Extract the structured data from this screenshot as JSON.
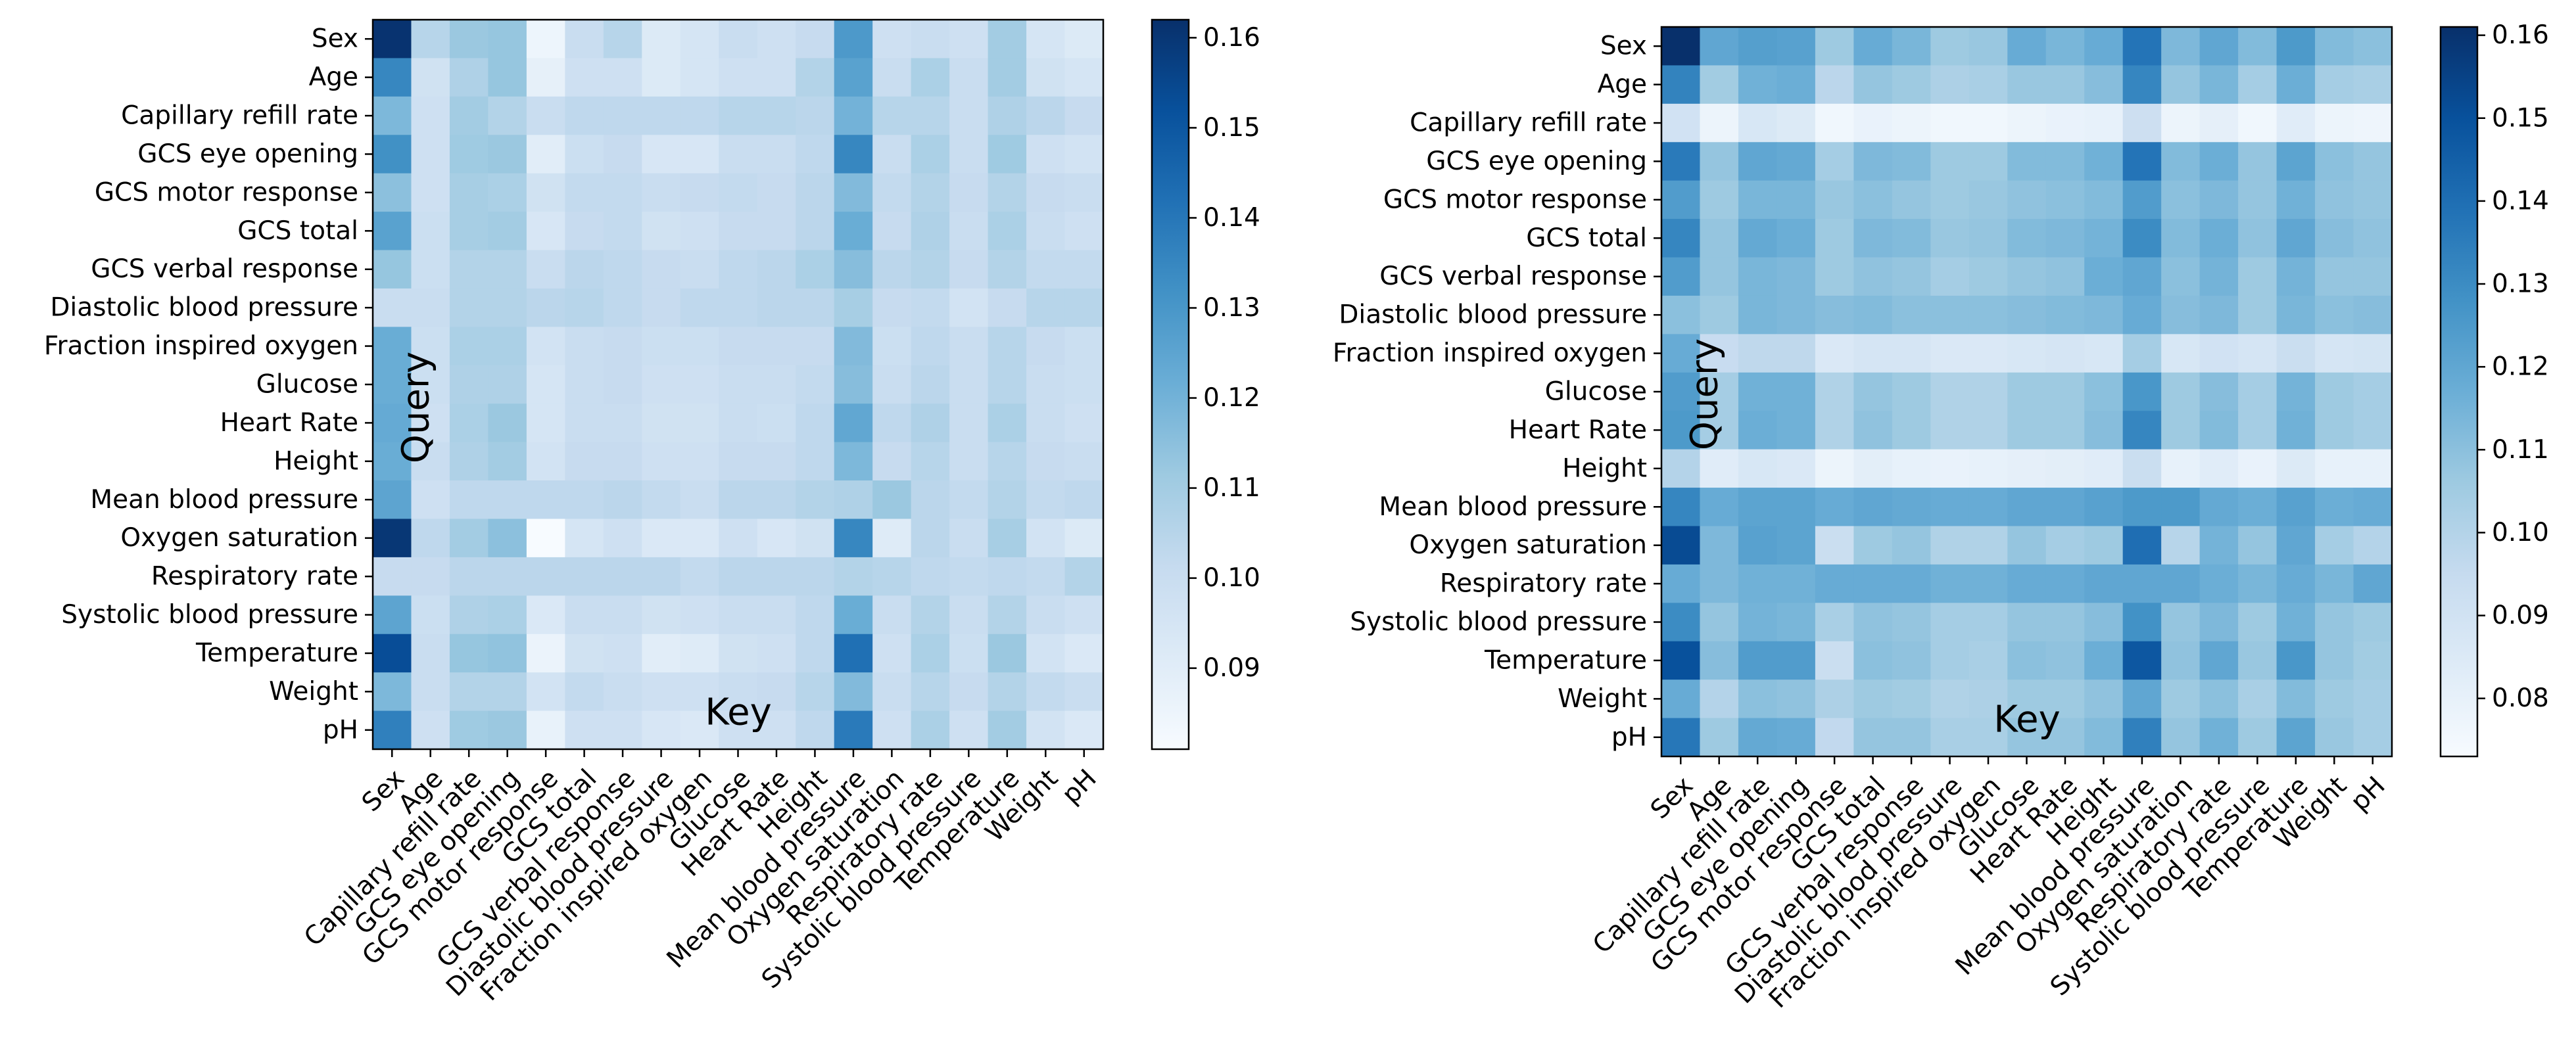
{
  "chart_data": [
    {
      "type": "heatmap",
      "title": "",
      "xlabel": "Key",
      "ylabel": "Query",
      "colormap": "Blues",
      "categories": [
        "Sex",
        "Age",
        "Capillary refill rate",
        "GCS eye opening",
        "GCS motor response",
        "GCS total",
        "GCS verbal response",
        "Diastolic blood pressure",
        "Fraction inspired oxygen",
        "Glucose",
        "Heart Rate",
        "Height",
        "Mean blood pressure",
        "Oxygen saturation",
        "Respiratory rate",
        "Systolic blood pressure",
        "Temperature",
        "Weight",
        "pH"
      ],
      "colorbar": {
        "vmin": 0.081,
        "vmax": 0.162,
        "ticks": [
          "0.09",
          "0.10",
          "0.11",
          "0.12",
          "0.13",
          "0.14",
          "0.15",
          "0.16"
        ]
      },
      "z": [
        [
          0.161,
          0.105,
          0.112,
          0.113,
          0.085,
          0.1,
          0.105,
          0.092,
          0.095,
          0.1,
          0.098,
          0.101,
          0.129,
          0.098,
          0.1,
          0.098,
          0.11,
          0.095,
          0.092
        ],
        [
          0.135,
          0.097,
          0.107,
          0.113,
          0.088,
          0.098,
          0.098,
          0.092,
          0.095,
          0.098,
          0.098,
          0.106,
          0.126,
          0.1,
          0.108,
          0.1,
          0.11,
          0.097,
          0.095
        ],
        [
          0.118,
          0.098,
          0.11,
          0.106,
          0.1,
          0.103,
          0.103,
          0.103,
          0.103,
          0.105,
          0.105,
          0.104,
          0.12,
          0.105,
          0.105,
          0.1,
          0.107,
          0.104,
          0.101
        ],
        [
          0.132,
          0.098,
          0.111,
          0.112,
          0.09,
          0.099,
          0.101,
          0.094,
          0.094,
          0.1,
          0.1,
          0.103,
          0.135,
          0.1,
          0.108,
          0.1,
          0.111,
          0.098,
          0.096
        ],
        [
          0.115,
          0.098,
          0.109,
          0.108,
          0.097,
          0.102,
          0.102,
          0.1,
          0.101,
          0.102,
          0.101,
          0.104,
          0.117,
          0.102,
          0.106,
          0.101,
          0.106,
          0.101,
          0.1
        ],
        [
          0.126,
          0.099,
          0.109,
          0.11,
          0.094,
          0.101,
          0.102,
          0.097,
          0.098,
          0.101,
          0.101,
          0.104,
          0.122,
          0.101,
          0.107,
          0.1,
          0.108,
          0.1,
          0.098
        ],
        [
          0.113,
          0.099,
          0.106,
          0.106,
          0.1,
          0.104,
          0.103,
          0.101,
          0.1,
          0.103,
          0.104,
          0.108,
          0.116,
          0.104,
          0.106,
          0.101,
          0.106,
          0.102,
          0.102
        ],
        [
          0.1,
          0.1,
          0.106,
          0.106,
          0.104,
          0.105,
          0.103,
          0.101,
          0.103,
          0.103,
          0.104,
          0.104,
          0.109,
          0.101,
          0.102,
          0.096,
          0.101,
          0.105,
          0.105
        ],
        [
          0.122,
          0.099,
          0.108,
          0.108,
          0.096,
          0.1,
          0.101,
          0.099,
          0.099,
          0.101,
          0.101,
          0.101,
          0.117,
          0.099,
          0.103,
          0.1,
          0.105,
          0.101,
          0.099
        ],
        [
          0.122,
          0.099,
          0.107,
          0.107,
          0.095,
          0.1,
          0.101,
          0.098,
          0.098,
          0.1,
          0.1,
          0.102,
          0.116,
          0.1,
          0.104,
          0.1,
          0.105,
          0.1,
          0.099
        ],
        [
          0.123,
          0.098,
          0.108,
          0.112,
          0.095,
          0.1,
          0.1,
          0.097,
          0.097,
          0.1,
          0.099,
          0.103,
          0.124,
          0.103,
          0.107,
          0.1,
          0.108,
          0.1,
          0.098
        ],
        [
          0.122,
          0.1,
          0.107,
          0.11,
          0.096,
          0.101,
          0.101,
          0.098,
          0.098,
          0.101,
          0.101,
          0.103,
          0.118,
          0.101,
          0.105,
          0.1,
          0.105,
          0.101,
          0.1
        ],
        [
          0.125,
          0.098,
          0.103,
          0.103,
          0.103,
          0.103,
          0.104,
          0.102,
          0.1,
          0.104,
          0.104,
          0.106,
          0.107,
          0.112,
          0.104,
          0.102,
          0.106,
          0.102,
          0.103
        ],
        [
          0.16,
          0.103,
          0.11,
          0.115,
          0.081,
          0.095,
          0.098,
          0.093,
          0.093,
          0.098,
          0.094,
          0.097,
          0.135,
          0.091,
          0.104,
          0.1,
          0.109,
          0.096,
          0.092
        ],
        [
          0.101,
          0.101,
          0.104,
          0.104,
          0.104,
          0.104,
          0.104,
          0.104,
          0.102,
          0.104,
          0.104,
          0.104,
          0.106,
          0.105,
          0.103,
          0.102,
          0.103,
          0.102,
          0.106
        ],
        [
          0.125,
          0.099,
          0.107,
          0.108,
          0.093,
          0.1,
          0.1,
          0.097,
          0.098,
          0.1,
          0.1,
          0.103,
          0.122,
          0.1,
          0.106,
          0.1,
          0.106,
          0.1,
          0.098
        ],
        [
          0.153,
          0.1,
          0.113,
          0.114,
          0.086,
          0.097,
          0.098,
          0.09,
          0.091,
          0.097,
          0.098,
          0.103,
          0.142,
          0.098,
          0.108,
          0.099,
          0.112,
          0.096,
          0.093
        ],
        [
          0.118,
          0.1,
          0.106,
          0.106,
          0.096,
          0.102,
          0.1,
          0.098,
          0.098,
          0.1,
          0.101,
          0.105,
          0.117,
          0.1,
          0.105,
          0.101,
          0.106,
          0.102,
          0.1
        ],
        [
          0.137,
          0.098,
          0.111,
          0.112,
          0.087,
          0.098,
          0.098,
          0.094,
          0.093,
          0.098,
          0.098,
          0.103,
          0.139,
          0.098,
          0.108,
          0.098,
          0.11,
          0.096,
          0.093
        ]
      ]
    },
    {
      "type": "heatmap",
      "title": "",
      "xlabel": "Key",
      "ylabel": "Query",
      "colormap": "Blues",
      "categories": [
        "Sex",
        "Age",
        "Capillary refill rate",
        "GCS eye opening",
        "GCS motor response",
        "GCS total",
        "GCS verbal response",
        "Diastolic blood pressure",
        "Fraction inspired oxygen",
        "Glucose",
        "Heart Rate",
        "Height",
        "Mean blood pressure",
        "Oxygen saturation",
        "Respiratory rate",
        "Systolic blood pressure",
        "Temperature",
        "Weight",
        "pH"
      ],
      "colorbar": {
        "vmin": 0.073,
        "vmax": 0.161,
        "ticks": [
          "0.08",
          "0.09",
          "0.10",
          "0.11",
          "0.12",
          "0.13",
          "0.14",
          "0.15",
          "0.16"
        ]
      },
      "z": [
        [
          0.161,
          0.12,
          0.123,
          0.122,
          0.106,
          0.118,
          0.114,
          0.106,
          0.107,
          0.118,
          0.114,
          0.118,
          0.138,
          0.113,
          0.12,
          0.112,
          0.125,
          0.112,
          0.11
        ],
        [
          0.133,
          0.105,
          0.116,
          0.117,
          0.098,
          0.108,
          0.106,
          0.102,
          0.103,
          0.107,
          0.107,
          0.111,
          0.132,
          0.108,
          0.114,
          0.104,
          0.117,
          0.104,
          0.103
        ],
        [
          0.09,
          0.078,
          0.087,
          0.085,
          0.076,
          0.079,
          0.078,
          0.076,
          0.076,
          0.078,
          0.079,
          0.08,
          0.092,
          0.078,
          0.081,
          0.076,
          0.083,
          0.078,
          0.077
        ],
        [
          0.136,
          0.108,
          0.12,
          0.119,
          0.104,
          0.113,
          0.112,
          0.106,
          0.106,
          0.112,
          0.112,
          0.116,
          0.138,
          0.112,
          0.117,
          0.108,
          0.121,
          0.11,
          0.108
        ],
        [
          0.124,
          0.106,
          0.114,
          0.114,
          0.107,
          0.11,
          0.108,
          0.106,
          0.107,
          0.109,
          0.11,
          0.112,
          0.124,
          0.11,
          0.113,
          0.108,
          0.116,
          0.109,
          0.108
        ],
        [
          0.132,
          0.108,
          0.119,
          0.117,
          0.106,
          0.113,
          0.112,
          0.107,
          0.108,
          0.112,
          0.113,
          0.115,
          0.13,
          0.112,
          0.117,
          0.109,
          0.12,
          0.111,
          0.109
        ],
        [
          0.124,
          0.108,
          0.114,
          0.113,
          0.106,
          0.109,
          0.108,
          0.104,
          0.106,
          0.108,
          0.109,
          0.117,
          0.12,
          0.11,
          0.115,
          0.106,
          0.115,
          0.108,
          0.108
        ],
        [
          0.11,
          0.106,
          0.114,
          0.113,
          0.111,
          0.112,
          0.11,
          0.11,
          0.11,
          0.111,
          0.112,
          0.113,
          0.118,
          0.111,
          0.113,
          0.106,
          0.114,
          0.11,
          0.111
        ],
        [
          0.118,
          0.094,
          0.097,
          0.097,
          0.086,
          0.088,
          0.088,
          0.086,
          0.086,
          0.087,
          0.088,
          0.087,
          0.104,
          0.087,
          0.09,
          0.088,
          0.093,
          0.088,
          0.089
        ],
        [
          0.124,
          0.104,
          0.116,
          0.116,
          0.101,
          0.108,
          0.106,
          0.101,
          0.101,
          0.106,
          0.106,
          0.11,
          0.126,
          0.106,
          0.111,
          0.104,
          0.115,
          0.106,
          0.104
        ],
        [
          0.125,
          0.104,
          0.117,
          0.116,
          0.101,
          0.109,
          0.106,
          0.101,
          0.101,
          0.106,
          0.106,
          0.111,
          0.132,
          0.106,
          0.112,
          0.104,
          0.116,
          0.106,
          0.104
        ],
        [
          0.1,
          0.083,
          0.087,
          0.086,
          0.078,
          0.082,
          0.08,
          0.079,
          0.08,
          0.081,
          0.082,
          0.083,
          0.093,
          0.08,
          0.083,
          0.079,
          0.085,
          0.08,
          0.08
        ],
        [
          0.132,
          0.118,
          0.121,
          0.121,
          0.118,
          0.12,
          0.119,
          0.118,
          0.118,
          0.12,
          0.12,
          0.122,
          0.125,
          0.125,
          0.119,
          0.117,
          0.122,
          0.117,
          0.118
        ],
        [
          0.152,
          0.113,
          0.122,
          0.121,
          0.093,
          0.106,
          0.108,
          0.101,
          0.101,
          0.108,
          0.104,
          0.106,
          0.14,
          0.099,
          0.115,
          0.108,
          0.12,
          0.104,
          0.1
        ],
        [
          0.118,
          0.113,
          0.116,
          0.116,
          0.118,
          0.118,
          0.118,
          0.116,
          0.116,
          0.118,
          0.118,
          0.12,
          0.12,
          0.12,
          0.117,
          0.114,
          0.118,
          0.114,
          0.12
        ],
        [
          0.13,
          0.108,
          0.115,
          0.114,
          0.103,
          0.109,
          0.108,
          0.104,
          0.104,
          0.108,
          0.108,
          0.111,
          0.128,
          0.108,
          0.113,
          0.106,
          0.116,
          0.108,
          0.106
        ],
        [
          0.15,
          0.111,
          0.124,
          0.124,
          0.093,
          0.11,
          0.109,
          0.104,
          0.103,
          0.11,
          0.109,
          0.117,
          0.148,
          0.109,
          0.12,
          0.107,
          0.126,
          0.108,
          0.105
        ],
        [
          0.118,
          0.1,
          0.11,
          0.109,
          0.102,
          0.106,
          0.105,
          0.101,
          0.102,
          0.106,
          0.106,
          0.109,
          0.12,
          0.106,
          0.11,
          0.103,
          0.112,
          0.106,
          0.104
        ],
        [
          0.137,
          0.106,
          0.119,
          0.118,
          0.096,
          0.108,
          0.108,
          0.103,
          0.103,
          0.108,
          0.108,
          0.112,
          0.134,
          0.108,
          0.116,
          0.106,
          0.121,
          0.107,
          0.104
        ]
      ]
    }
  ]
}
